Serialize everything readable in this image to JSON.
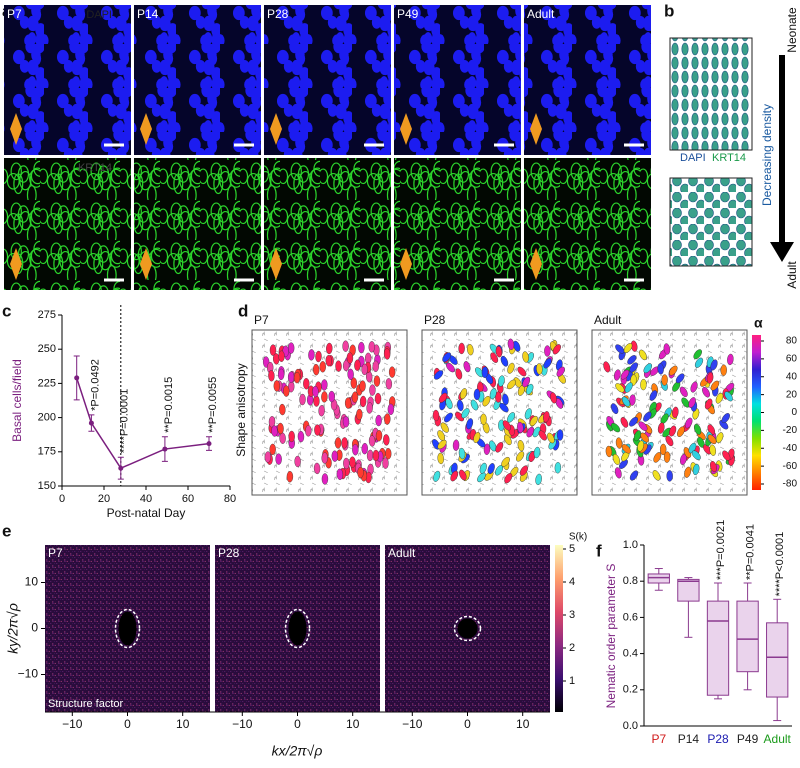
{
  "figure": {
    "a": {
      "letter": "a",
      "row_labels": [
        "DAPI",
        "KRT14"
      ],
      "columns": [
        "P7",
        "P14",
        "P28",
        "P49",
        "Adult"
      ]
    },
    "b": {
      "letter": "b",
      "top": "Neonate",
      "axis": "Decreasing density",
      "bottom": "Adult",
      "legend": [
        "DAPI",
        "KRT14"
      ]
    },
    "c": {
      "letter": "c"
    },
    "d": {
      "letter": "d",
      "ylabel": "Shape anisotropy",
      "panels": [
        "P7",
        "P28",
        "Adult"
      ],
      "colorbar_title": "α",
      "colorbar_ticks": [
        80,
        60,
        40,
        20,
        0,
        -20,
        -40,
        -60,
        -80
      ]
    },
    "e": {
      "letter": "e",
      "panels": [
        "P7",
        "P28",
        "Adult"
      ],
      "annotation": "Structure factor",
      "colorbar_title": "S(k)",
      "colorbar_ticks": [
        5,
        4,
        3,
        2,
        1
      ],
      "xticks": [
        {
          "value": -10,
          "label": "−10"
        },
        0,
        10
      ],
      "yticks": [
        10,
        0,
        {
          "value": -10,
          "label": "−10"
        }
      ],
      "xlabel": "kx/2π√ρ",
      "ylabel": "ky/2π√ρ"
    },
    "f": {
      "letter": "f"
    }
  },
  "chart_data": [
    {
      "type": "line",
      "xlabel": "Post-natal Day",
      "ylabel": "Basal cells/field",
      "x": [
        7,
        14,
        28,
        49,
        70
      ],
      "values": [
        229,
        196,
        163,
        177,
        181
      ],
      "errors": [
        16,
        6,
        8,
        9,
        5
      ],
      "annotations": [
        null,
        "*P=0.0492",
        "****P=0.0001",
        "**P=0.0015",
        "**P=0.0055"
      ],
      "reference_x": 28,
      "color": "#7b1f7f",
      "xlim": [
        0,
        80
      ],
      "xticks": [
        0,
        20,
        40,
        60,
        80
      ],
      "ylim": [
        150,
        275
      ],
      "yticks": [
        150,
        175,
        200,
        225,
        250,
        275
      ]
    },
    {
      "type": "box",
      "ylabel": "Nematic order parameter S",
      "categories": [
        "P7",
        "P14",
        "P28",
        "P49",
        "Adult"
      ],
      "category_colors": [
        "#d01818",
        "#222222",
        "#1a1ab0",
        "#222222",
        "#1a9a1a"
      ],
      "min": [
        0.75,
        0.49,
        0.15,
        0.2,
        0.03
      ],
      "q1": [
        0.79,
        0.69,
        0.17,
        0.3,
        0.16
      ],
      "median": [
        0.82,
        0.8,
        0.58,
        0.48,
        0.38
      ],
      "q3": [
        0.84,
        0.81,
        0.69,
        0.69,
        0.57
      ],
      "max": [
        0.87,
        0.82,
        0.79,
        0.79,
        0.7
      ],
      "annotations": [
        null,
        null,
        "***P=0.0021",
        "**P=0.0041",
        "****P<0.0001"
      ],
      "color": "#8b3a8f",
      "ylim": [
        0,
        1.0
      ],
      "yticks": [
        {
          "value": 0,
          "label": "0.0"
        },
        0.2,
        0.4,
        0.6,
        0.8,
        {
          "value": 1.0,
          "label": "1.0"
        }
      ]
    }
  ]
}
